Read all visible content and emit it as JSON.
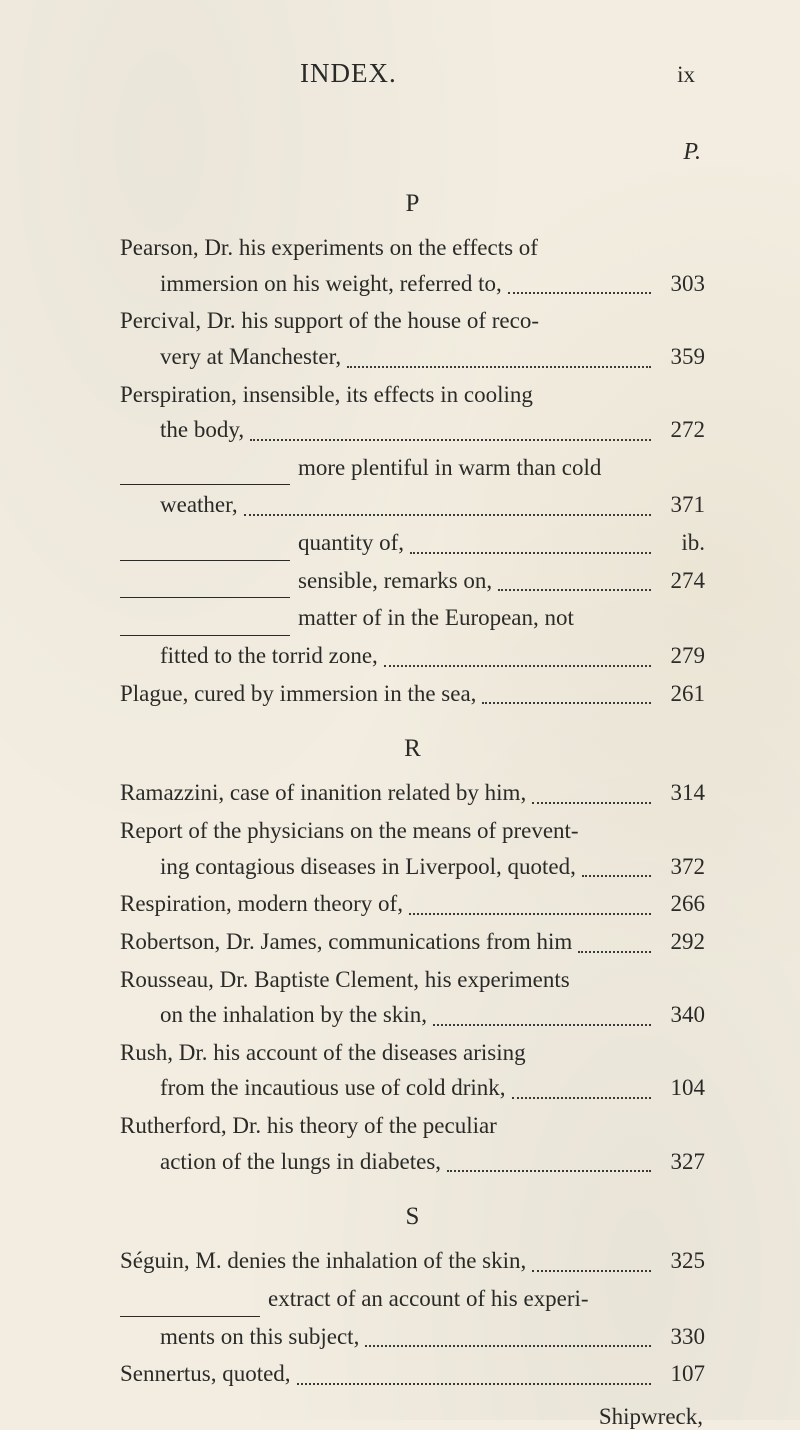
{
  "header": {
    "title": "INDEX.",
    "folio": "ix"
  },
  "rightHead": "P.",
  "catchword": "Shipwreck,",
  "sections": [
    {
      "letter": "P",
      "entries": [
        {
          "lines": [
            "Pearson, Dr. his experiments on the effects of"
          ],
          "tail": "immersion on his weight, referred to,",
          "page": "303",
          "tailClass": "indent"
        },
        {
          "lines": [
            "Percival, Dr. his support of the house of reco-"
          ],
          "tail": "very at Manchester,",
          "page": "359",
          "tailClass": "indent"
        },
        {
          "lines": [
            "Perspiration, insensible, its effects in cooling"
          ],
          "tail": "the body,",
          "page": "272",
          "tailClass": "indent"
        },
        {
          "lines": [],
          "dash": "w1",
          "preDash": "more plentiful in warm than cold",
          "tail": "weather,",
          "page": "371",
          "tailClass": "indent"
        },
        {
          "lines": [],
          "dash": "w1",
          "tail": "quantity of,",
          "page": "ib."
        },
        {
          "lines": [],
          "dash": "w1",
          "tail": "sensible, remarks on,",
          "page": "274"
        },
        {
          "lines": [],
          "dash": "w1",
          "preDash": "matter of in the European, not",
          "tail": "fitted to the torrid zone,",
          "page": "279",
          "tailClass": "indent"
        },
        {
          "lines": [],
          "tail": "Plague, cured by immersion in the sea,",
          "page": "261"
        }
      ]
    },
    {
      "letter": "R",
      "entries": [
        {
          "lines": [],
          "tail": "Ramazzini, case of inanition related by him,",
          "page": "314"
        },
        {
          "lines": [
            "Report of the physicians on the means of prevent-"
          ],
          "tail": "ing contagious diseases in Liverpool, quoted,",
          "page": "372",
          "tailClass": "indent"
        },
        {
          "lines": [],
          "tail": "Respiration, modern theory of,",
          "page": "266"
        },
        {
          "lines": [],
          "tail": "Robertson, Dr. James, communications from him",
          "page": "292",
          "tight": true
        },
        {
          "lines": [
            "Rousseau, Dr. Baptiste Clement, his experiments"
          ],
          "tail": "on the inhalation by the skin,",
          "page": "340",
          "tailClass": "indent"
        },
        {
          "lines": [
            "Rush, Dr. his account of the diseases arising"
          ],
          "tail": "from the incautious use of cold drink,",
          "page": "104",
          "tailClass": "indent"
        },
        {
          "lines": [
            "Rutherford, Dr. his theory of the peculiar"
          ],
          "tail": "action of the lungs in diabetes,",
          "page": "327",
          "tailClass": "indent"
        }
      ]
    },
    {
      "letter": "S",
      "entries": [
        {
          "lines": [],
          "tail": "Séguin, M. denies the inhalation of the skin,",
          "page": "325"
        },
        {
          "lines": [],
          "dash": "w2",
          "preDash": "extract of an account of his experi-",
          "tail": "ments on this subject,",
          "page": "330",
          "tailClass": "indent"
        },
        {
          "lines": [],
          "tail": "Sennertus, quoted,",
          "page": "107"
        }
      ]
    }
  ]
}
